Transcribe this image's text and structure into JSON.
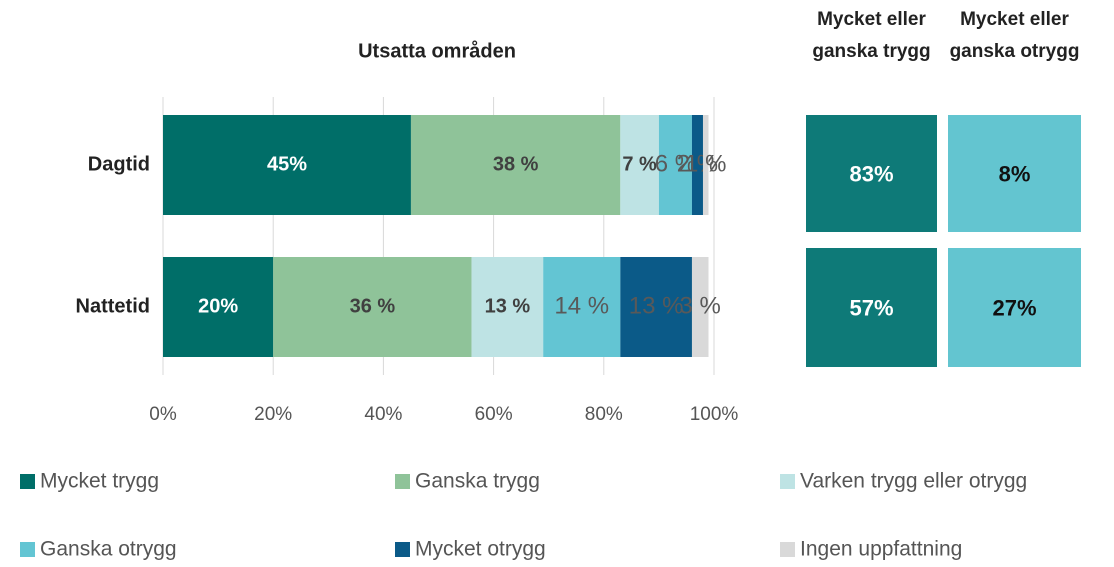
{
  "chart_data": {
    "type": "stacked_barh",
    "title": "Utsatta områden",
    "categories": [
      "Dagtid",
      "Nattetid"
    ],
    "series": [
      {
        "name": "Mycket trygg",
        "color": "#006e68",
        "values": [
          45,
          20
        ],
        "value_labels": [
          "45%",
          "20%"
        ]
      },
      {
        "name": "Ganska trygg",
        "color": "#8fc399",
        "values": [
          38,
          36
        ],
        "value_labels": [
          "38 %",
          "36 %"
        ]
      },
      {
        "name": "Varken trygg eller otrygg",
        "color": "#bee3e4",
        "values": [
          7,
          13
        ],
        "value_labels": [
          "7 %",
          "13 %"
        ]
      },
      {
        "name": "Ganska otrygg",
        "color": "#63c5d3",
        "values": [
          6,
          14
        ],
        "value_labels": [
          "6 %",
          "14 %"
        ]
      },
      {
        "name": "Mycket otrygg",
        "color": "#0b5a88",
        "values": [
          2,
          13
        ],
        "value_labels": [
          "2 %",
          "13 %"
        ]
      },
      {
        "name": "Ingen uppfattning",
        "color": "#d9d9d9",
        "values": [
          1,
          3
        ],
        "value_labels": [
          "1 %",
          "3 %"
        ]
      }
    ],
    "xlim": [
      0,
      100
    ],
    "xticks": [
      {
        "value": 0,
        "label": "0%"
      },
      {
        "value": 20,
        "label": "20%"
      },
      {
        "value": 40,
        "label": "40%"
      },
      {
        "value": 60,
        "label": "60%"
      },
      {
        "value": 80,
        "label": "80%"
      },
      {
        "value": 100,
        "label": "100%"
      }
    ],
    "grid": true
  },
  "summary": {
    "headers": [
      [
        "Mycket eller",
        "ganska trygg"
      ],
      [
        "Mycket eller",
        "ganska otrygg"
      ]
    ],
    "colors": [
      "#0e7a78",
      "#63c5d0"
    ],
    "values": [
      [
        83,
        8
      ],
      [
        57,
        27
      ]
    ],
    "value_labels": [
      [
        "83%",
        "8%"
      ],
      [
        "57%",
        "27%"
      ]
    ]
  }
}
